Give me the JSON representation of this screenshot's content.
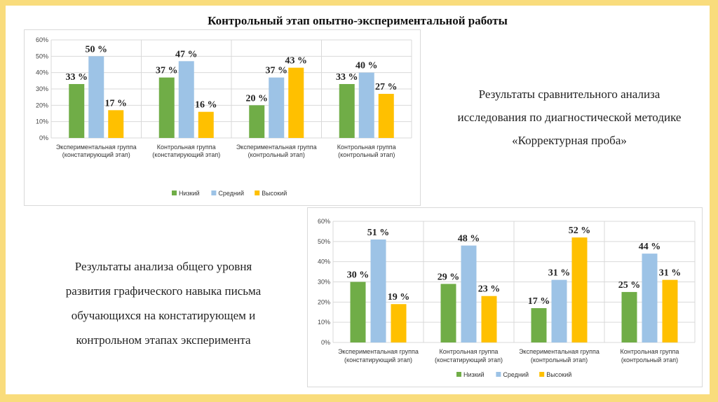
{
  "title": "Контрольный этап опытно-экспериментальной работы",
  "caption_1": [
    "Результаты сравнительного анализа",
    "исследования по диагностической методике",
    "«Корректурная проба»"
  ],
  "caption_2": [
    "Результаты анализа общего уровня",
    "развития графического навыка письма",
    "обучающихся на констатирующем и",
    "контрольном этапах эксперимента"
  ],
  "colors": {
    "low": "#70ad47",
    "mid": "#9dc3e6",
    "high": "#ffc000"
  },
  "chart_data": [
    {
      "type": "bar",
      "categories": [
        [
          "Экспериментальная группа",
          "(констатирующий этап)"
        ],
        [
          "Контрольная группа",
          "(констатирующий этап)"
        ],
        [
          "Экспериментальная группа",
          "(контрольный этап)"
        ],
        [
          "Контрольная группа",
          "(контрольный этап)"
        ]
      ],
      "series": [
        {
          "name": "Низкий",
          "values": [
            33,
            37,
            20,
            33
          ]
        },
        {
          "name": "Средний",
          "values": [
            50,
            47,
            37,
            40
          ]
        },
        {
          "name": "Высокий",
          "values": [
            17,
            16,
            43,
            27
          ]
        }
      ],
      "data_labels": [
        [
          "33 %",
          "37 %",
          "20 %",
          "33 %"
        ],
        [
          "50 %",
          "47 %",
          "37 %",
          "40 %"
        ],
        [
          "17 %",
          "16 %",
          "43 %",
          "27 %"
        ]
      ],
      "yticks": [
        "0%",
        "10%",
        "20%",
        "30%",
        "40%",
        "50%",
        "60%"
      ],
      "ylim": [
        0,
        60
      ],
      "legend": "bottom"
    },
    {
      "type": "bar",
      "categories": [
        [
          "Экспериментальная группа",
          "(констатирующий этап)"
        ],
        [
          "Контрольная группа",
          "(констатирующий этап)"
        ],
        [
          "Экспериментальная группа",
          "(контрольный этап)"
        ],
        [
          "Контрольная группа",
          "(контрольный этап)"
        ]
      ],
      "series": [
        {
          "name": "Низкий",
          "values": [
            30,
            29,
            17,
            25
          ]
        },
        {
          "name": "Средний",
          "values": [
            51,
            48,
            31,
            44
          ]
        },
        {
          "name": "Высокий",
          "values": [
            19,
            23,
            52,
            31
          ]
        }
      ],
      "data_labels": [
        [
          "30 %",
          "29 %",
          "17 %",
          "25 %"
        ],
        [
          "51 %",
          "48 %",
          "31 %",
          "44 %"
        ],
        [
          "19 %",
          "23 %",
          "52 %",
          "31 %"
        ]
      ],
      "yticks": [
        "0%",
        "10%",
        "20%",
        "30%",
        "40%",
        "50%",
        "60%"
      ],
      "ylim": [
        0,
        60
      ],
      "legend": "bottom"
    }
  ]
}
